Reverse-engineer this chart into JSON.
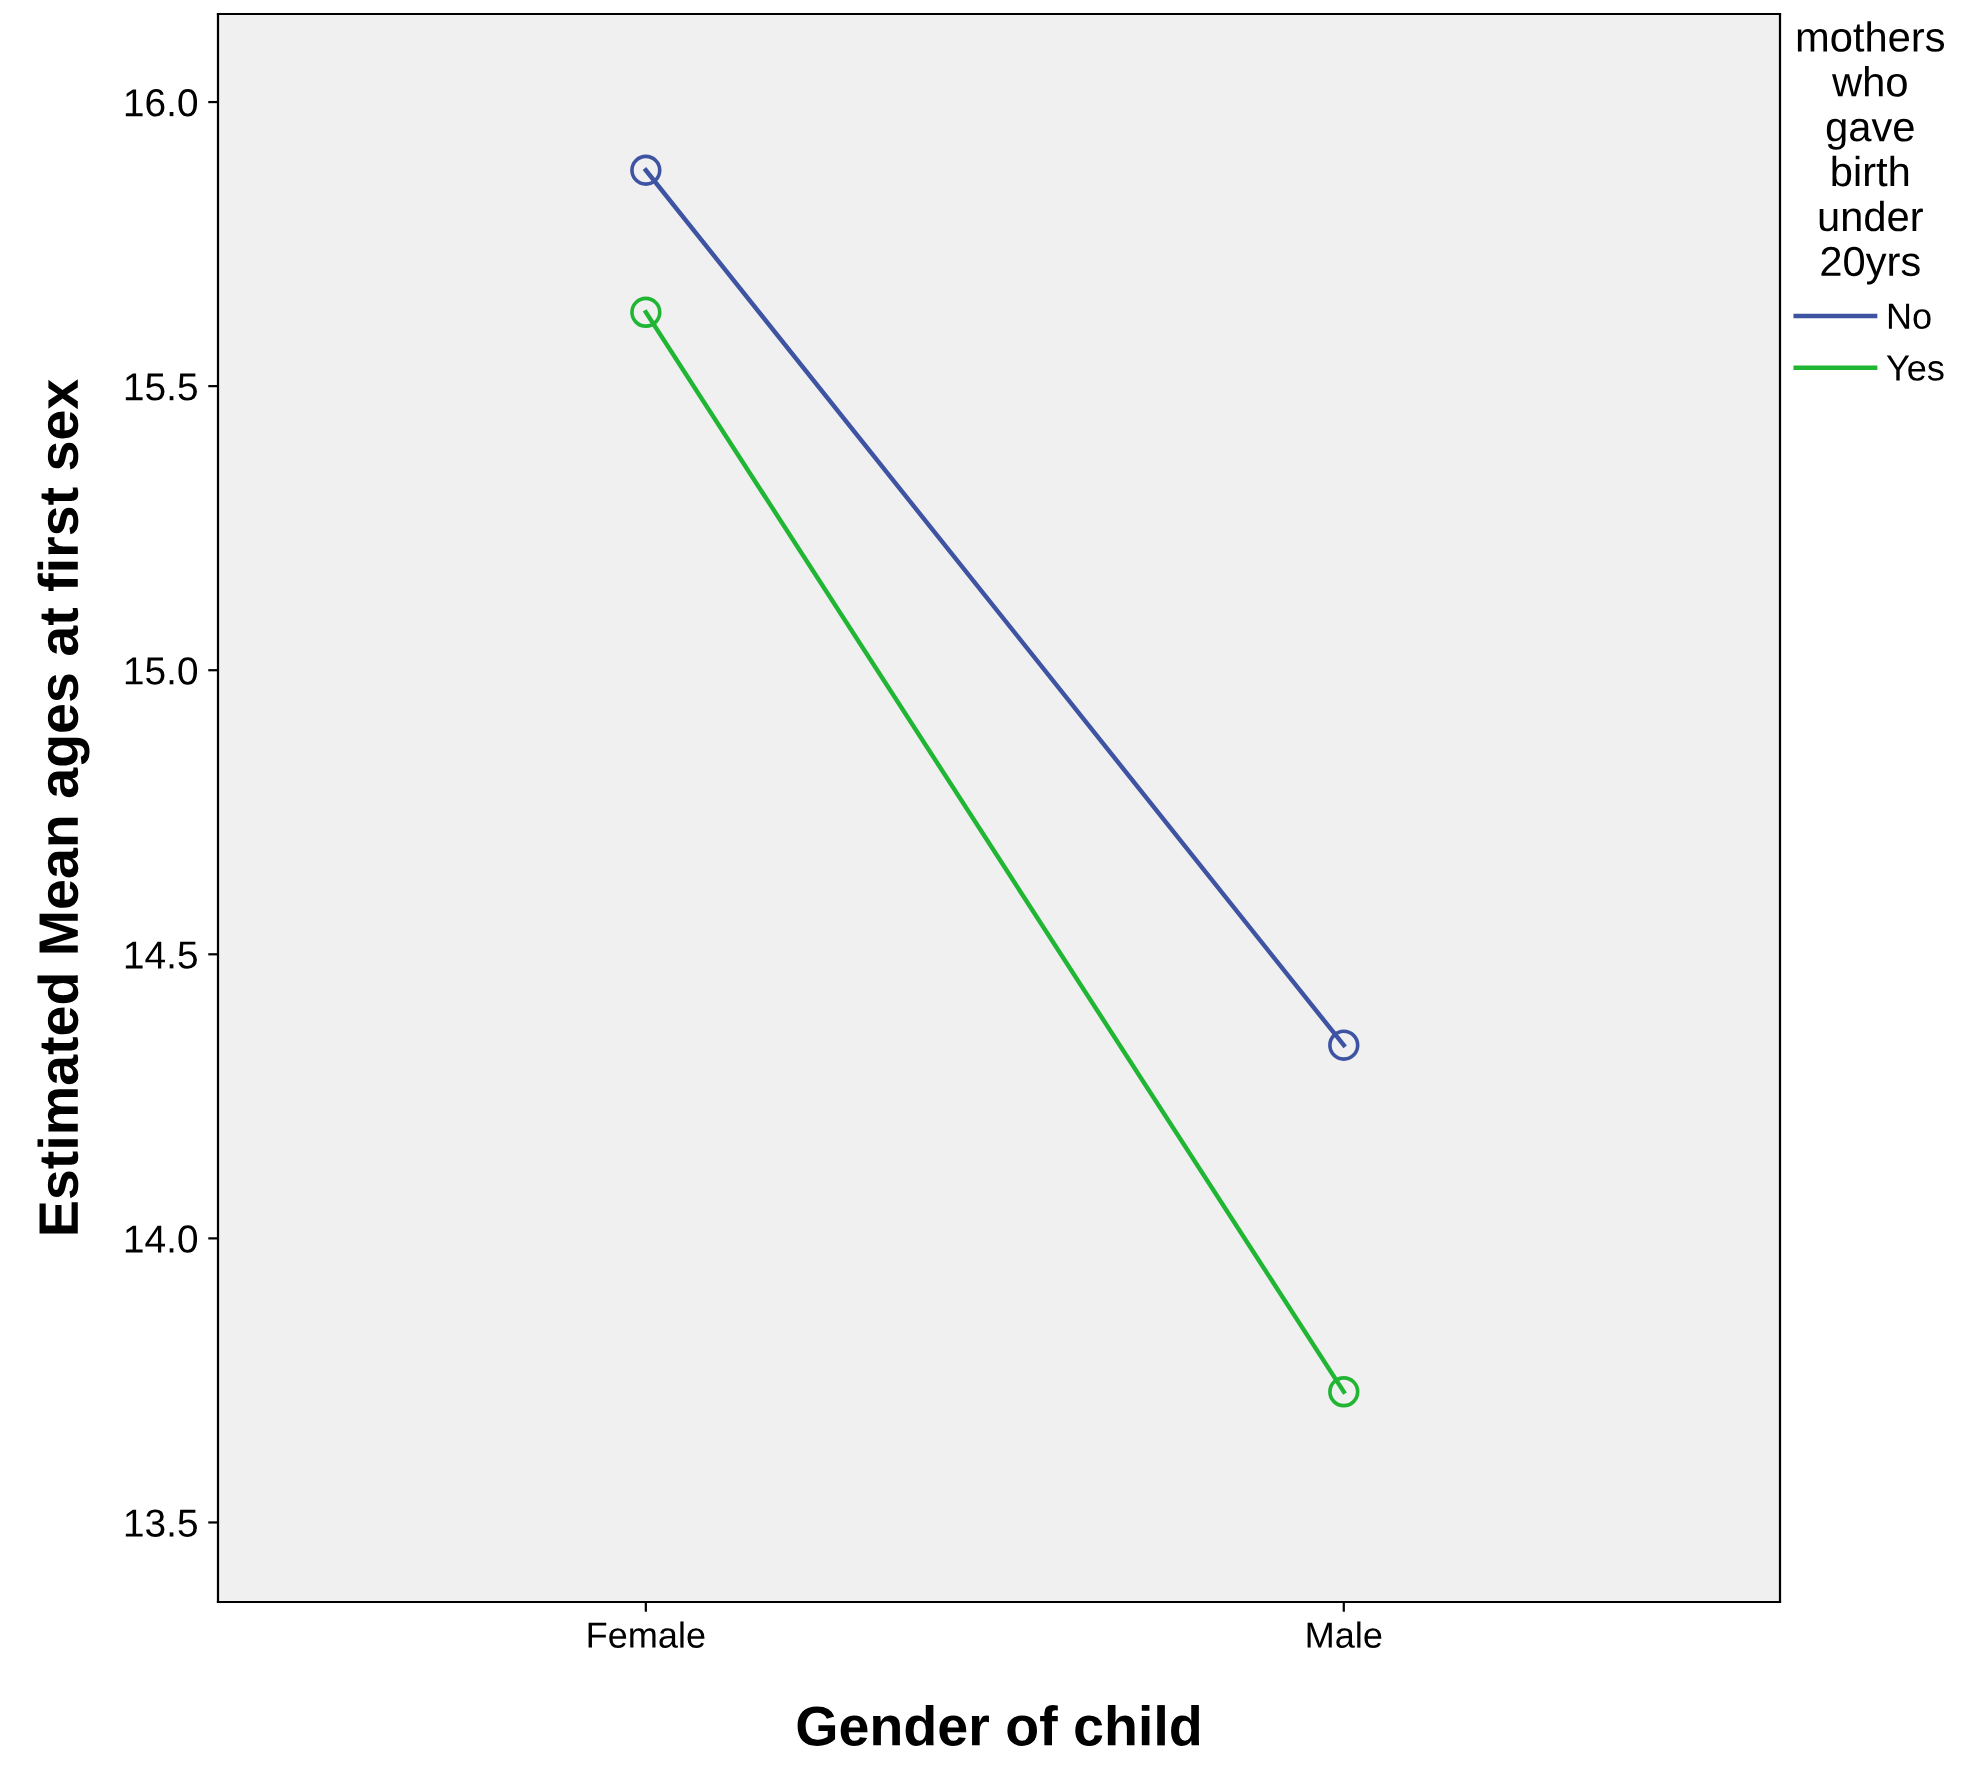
{
  "chart_data": {
    "type": "line",
    "xlabel": "Gender of child",
    "ylabel": "Estimated Mean ages at first sex",
    "legend_title": "mothers\nwho\ngave\nbirth\nunder\n20yrs",
    "categories": [
      "Female",
      "Male"
    ],
    "series": [
      {
        "name": "No",
        "color": "#3e54a3",
        "values": [
          15.88,
          14.34
        ]
      },
      {
        "name": "Yes",
        "color": "#21b534",
        "values": [
          15.63,
          13.73
        ]
      }
    ],
    "ylim": [
      13.36,
      16.155
    ],
    "yticks": [
      {
        "value": 13.5,
        "label": "13.5"
      },
      {
        "value": 14.0,
        "label": "14.0"
      },
      {
        "value": 14.5,
        "label": "14.5"
      },
      {
        "value": 15.0,
        "label": "15.0"
      },
      {
        "value": 15.5,
        "label": "15.5"
      },
      {
        "value": 16.0,
        "label": "16.0"
      }
    ],
    "grid": false,
    "legend": "right",
    "marker": "circle",
    "line_style": "solid"
  }
}
